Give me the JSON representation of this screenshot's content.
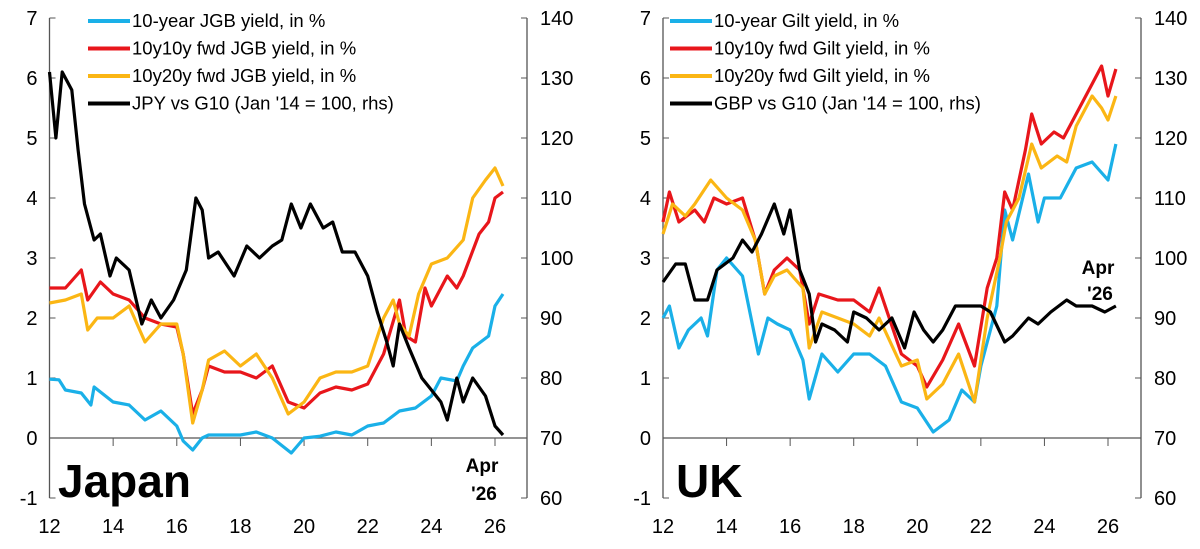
{
  "chart_data": [
    {
      "type": "line",
      "panel_label": "Japan",
      "end_annotation": [
        "Apr",
        "'26"
      ],
      "x_ticks": [
        "12",
        "14",
        "16",
        "18",
        "20",
        "22",
        "24",
        "26"
      ],
      "xlim": [
        2012,
        2026.8
      ],
      "y_left": {
        "ylim": [
          -1,
          7
        ],
        "ticks": [
          "-1",
          "0",
          "1",
          "2",
          "3",
          "4",
          "5",
          "6",
          "7"
        ]
      },
      "y_right": {
        "ylim": [
          60,
          140
        ],
        "ticks": [
          "60",
          "70",
          "80",
          "90",
          "100",
          "110",
          "120",
          "130",
          "140"
        ]
      },
      "legend_position": "top",
      "series": [
        {
          "name": "10-year JGB yield, in %",
          "color": "#1ab0e8",
          "axis": "left",
          "x": [
            2012,
            2012.3,
            2012.5,
            2013,
            2013.3,
            2013.4,
            2014,
            2014.5,
            2015,
            2015.5,
            2016,
            2016.2,
            2016.5,
            2016.8,
            2017,
            2018,
            2018.5,
            2019,
            2019.6,
            2020,
            2020.5,
            2021,
            2021.5,
            2022,
            2022.5,
            2023,
            2023.5,
            2024,
            2024.3,
            2024.8,
            2025,
            2025.3,
            2025.8,
            2026,
            2026.25
          ],
          "y": [
            0.98,
            0.97,
            0.8,
            0.75,
            0.55,
            0.85,
            0.6,
            0.55,
            0.3,
            0.45,
            0.2,
            -0.05,
            -0.2,
            0.0,
            0.05,
            0.05,
            0.1,
            0.0,
            -0.25,
            0.0,
            0.03,
            0.1,
            0.05,
            0.2,
            0.25,
            0.45,
            0.5,
            0.7,
            1.0,
            0.95,
            1.2,
            1.5,
            1.7,
            2.2,
            2.4
          ]
        },
        {
          "name": "10y10y fwd JGB yield, in %",
          "color": "#e8161b",
          "axis": "left",
          "x": [
            2012,
            2012.5,
            2013,
            2013.2,
            2013.6,
            2014,
            2014.5,
            2015,
            2015.5,
            2016,
            2016.2,
            2016.5,
            2016.8,
            2017,
            2017.5,
            2018,
            2018.5,
            2019,
            2019.5,
            2020,
            2020.5,
            2021,
            2021.5,
            2022,
            2022.5,
            2023,
            2023.2,
            2023.5,
            2023.8,
            2024,
            2024.5,
            2024.8,
            2025,
            2025.5,
            2025.8,
            2026,
            2026.25
          ],
          "y": [
            2.5,
            2.5,
            2.8,
            2.3,
            2.6,
            2.4,
            2.3,
            2.0,
            1.9,
            1.85,
            1.4,
            0.4,
            0.8,
            1.2,
            1.1,
            1.1,
            1.0,
            1.2,
            0.6,
            0.5,
            0.75,
            0.85,
            0.8,
            0.9,
            1.4,
            2.3,
            1.7,
            1.6,
            2.5,
            2.2,
            2.7,
            2.5,
            2.7,
            3.4,
            3.6,
            4.0,
            4.1
          ]
        },
        {
          "name": "10y20y fwd JGB yield, in %",
          "color": "#fbb614",
          "axis": "left",
          "x": [
            2012,
            2012.5,
            2013,
            2013.2,
            2013.5,
            2014,
            2014.5,
            2015,
            2015.5,
            2016,
            2016.2,
            2016.5,
            2016.8,
            2017,
            2017.5,
            2018,
            2018.5,
            2019,
            2019.5,
            2020,
            2020.5,
            2021,
            2021.5,
            2022,
            2022.5,
            2022.8,
            2023,
            2023.3,
            2023.6,
            2024,
            2024.5,
            2025,
            2025.3,
            2025.7,
            2026,
            2026.25
          ],
          "y": [
            2.25,
            2.3,
            2.4,
            1.8,
            2.0,
            2.0,
            2.2,
            1.6,
            1.9,
            1.9,
            1.4,
            0.25,
            0.8,
            1.3,
            1.45,
            1.2,
            1.4,
            1.0,
            0.4,
            0.6,
            1.0,
            1.1,
            1.1,
            1.2,
            2.0,
            2.3,
            1.9,
            1.7,
            2.4,
            2.9,
            3.0,
            3.3,
            4.0,
            4.3,
            4.5,
            4.2
          ]
        },
        {
          "name": "JPY vs G10 (Jan '14 = 100, rhs)",
          "color": "#000000",
          "axis": "right",
          "x": [
            2012,
            2012.2,
            2012.4,
            2012.7,
            2012.9,
            2013.1,
            2013.4,
            2013.6,
            2013.9,
            2014.1,
            2014.5,
            2014.9,
            2015.2,
            2015.5,
            2015.9,
            2016.3,
            2016.6,
            2016.8,
            2017,
            2017.3,
            2017.8,
            2018.2,
            2018.6,
            2019,
            2019.3,
            2019.6,
            2019.9,
            2020.2,
            2020.6,
            2020.9,
            2021.2,
            2021.6,
            2022,
            2022.3,
            2022.6,
            2022.8,
            2023,
            2023.3,
            2023.7,
            2024,
            2024.3,
            2024.5,
            2024.8,
            2025,
            2025.3,
            2025.7,
            2026,
            2026.25
          ],
          "y": [
            131,
            120,
            131,
            128,
            118,
            109,
            103,
            104,
            97,
            100,
            98,
            89,
            93,
            90,
            93,
            98,
            110,
            108,
            100,
            101,
            97,
            102,
            100,
            102,
            103,
            109,
            105,
            109,
            105,
            106,
            101,
            101,
            97,
            91,
            86,
            82,
            89,
            85,
            80,
            78,
            76,
            73,
            80,
            76,
            80,
            77,
            72,
            70.5
          ]
        }
      ]
    },
    {
      "type": "line",
      "panel_label": "UK",
      "end_annotation": [
        "Apr",
        "'26"
      ],
      "x_ticks": [
        "12",
        "14",
        "16",
        "18",
        "20",
        "22",
        "24",
        "26"
      ],
      "xlim": [
        2012,
        2026.8
      ],
      "y_left": {
        "ylim": [
          -1,
          7
        ],
        "ticks": [
          "-1",
          "0",
          "1",
          "2",
          "3",
          "4",
          "5",
          "6",
          "7"
        ]
      },
      "y_right": {
        "ylim": [
          60,
          140
        ],
        "ticks": [
          "60",
          "70",
          "80",
          "90",
          "100",
          "110",
          "120",
          "130",
          "140"
        ]
      },
      "legend_position": "top",
      "series": [
        {
          "name": "10-year Gilt yield, in %",
          "color": "#1ab0e8",
          "axis": "left",
          "x": [
            2012,
            2012.2,
            2012.5,
            2012.8,
            2013.2,
            2013.4,
            2013.7,
            2014,
            2014.5,
            2015,
            2015.3,
            2015.6,
            2016,
            2016.4,
            2016.6,
            2017,
            2017.5,
            2018,
            2018.5,
            2019,
            2019.5,
            2020,
            2020.5,
            2021,
            2021.4,
            2021.8,
            2022,
            2022.5,
            2022.75,
            2023,
            2023.5,
            2023.8,
            2024,
            2024.5,
            2025,
            2025.5,
            2026,
            2026.25
          ],
          "y": [
            2.0,
            2.2,
            1.5,
            1.8,
            2.0,
            1.7,
            2.8,
            3.0,
            2.7,
            1.4,
            2.0,
            1.9,
            1.8,
            1.3,
            0.65,
            1.4,
            1.1,
            1.4,
            1.4,
            1.2,
            0.6,
            0.5,
            0.1,
            0.3,
            0.8,
            0.6,
            1.2,
            2.2,
            3.8,
            3.3,
            4.4,
            3.6,
            4.0,
            4.0,
            4.5,
            4.6,
            4.3,
            4.9
          ]
        },
        {
          "name": "10y10y fwd Gilt yield, in %",
          "color": "#e8161b",
          "axis": "left",
          "x": [
            2012,
            2012.2,
            2012.5,
            2013,
            2013.3,
            2013.6,
            2014,
            2014.5,
            2014.9,
            2015.2,
            2015.5,
            2015.9,
            2016.3,
            2016.6,
            2016.9,
            2017.5,
            2018,
            2018.5,
            2018.8,
            2019.5,
            2020,
            2020.3,
            2020.8,
            2021.3,
            2021.8,
            2022.2,
            2022.5,
            2022.75,
            2023,
            2023.4,
            2023.6,
            2023.9,
            2024.3,
            2024.6,
            2025,
            2025.5,
            2025.8,
            2026,
            2026.25
          ],
          "y": [
            3.6,
            4.1,
            3.6,
            3.8,
            3.6,
            4.0,
            3.9,
            4.0,
            3.3,
            2.4,
            2.8,
            3.0,
            2.8,
            1.9,
            2.4,
            2.3,
            2.3,
            2.1,
            2.5,
            1.4,
            1.2,
            0.85,
            1.3,
            1.9,
            1.2,
            2.5,
            3.0,
            4.1,
            3.8,
            4.8,
            5.4,
            4.9,
            5.1,
            5.0,
            5.4,
            5.9,
            6.2,
            5.7,
            6.15
          ]
        },
        {
          "name": "10y20y fwd Gilt yield, in %",
          "color": "#fbb614",
          "axis": "left",
          "x": [
            2012,
            2012.3,
            2012.7,
            2013,
            2013.5,
            2014,
            2014.5,
            2014.9,
            2015.2,
            2015.5,
            2015.9,
            2016.4,
            2016.6,
            2017,
            2017.5,
            2018,
            2018.5,
            2018.8,
            2019.5,
            2020,
            2020.3,
            2020.8,
            2021.3,
            2021.8,
            2022.2,
            2022.6,
            2022.8,
            2023.2,
            2023.6,
            2023.9,
            2024.4,
            2024.7,
            2025,
            2025.5,
            2025.8,
            2026,
            2026.25
          ],
          "y": [
            3.4,
            3.9,
            3.7,
            3.9,
            4.3,
            4.0,
            3.8,
            3.3,
            2.4,
            2.7,
            2.8,
            2.5,
            1.5,
            2.1,
            2.0,
            1.9,
            1.7,
            2.0,
            1.2,
            1.3,
            0.65,
            0.9,
            1.4,
            0.6,
            2.0,
            3.0,
            3.6,
            4.0,
            4.9,
            4.5,
            4.7,
            4.6,
            5.2,
            5.7,
            5.5,
            5.3,
            5.7
          ]
        },
        {
          "name": "GBP vs G10 (Jan '14 = 100, rhs)",
          "color": "#000000",
          "axis": "right",
          "x": [
            2012,
            2012.4,
            2012.7,
            2013,
            2013.4,
            2013.7,
            2014.2,
            2014.5,
            2014.8,
            2015.1,
            2015.5,
            2015.8,
            2016,
            2016.3,
            2016.6,
            2016.8,
            2017,
            2017.4,
            2017.8,
            2018,
            2018.4,
            2018.8,
            2019.2,
            2019.6,
            2019.9,
            2020.2,
            2020.5,
            2020.8,
            2021.2,
            2021.6,
            2022,
            2022.3,
            2022.75,
            2023,
            2023.5,
            2023.8,
            2024.2,
            2024.7,
            2025,
            2025.5,
            2025.9,
            2026.25
          ],
          "y": [
            96,
            99,
            99,
            93,
            93,
            98,
            100,
            103,
            101,
            104,
            109,
            104,
            108,
            98,
            94,
            86,
            89,
            88,
            86,
            91,
            90,
            88,
            90,
            85,
            91,
            88,
            86,
            88,
            92,
            92,
            92,
            91,
            86,
            87,
            90,
            89,
            91,
            93,
            92,
            92,
            91,
            92
          ]
        }
      ]
    }
  ]
}
